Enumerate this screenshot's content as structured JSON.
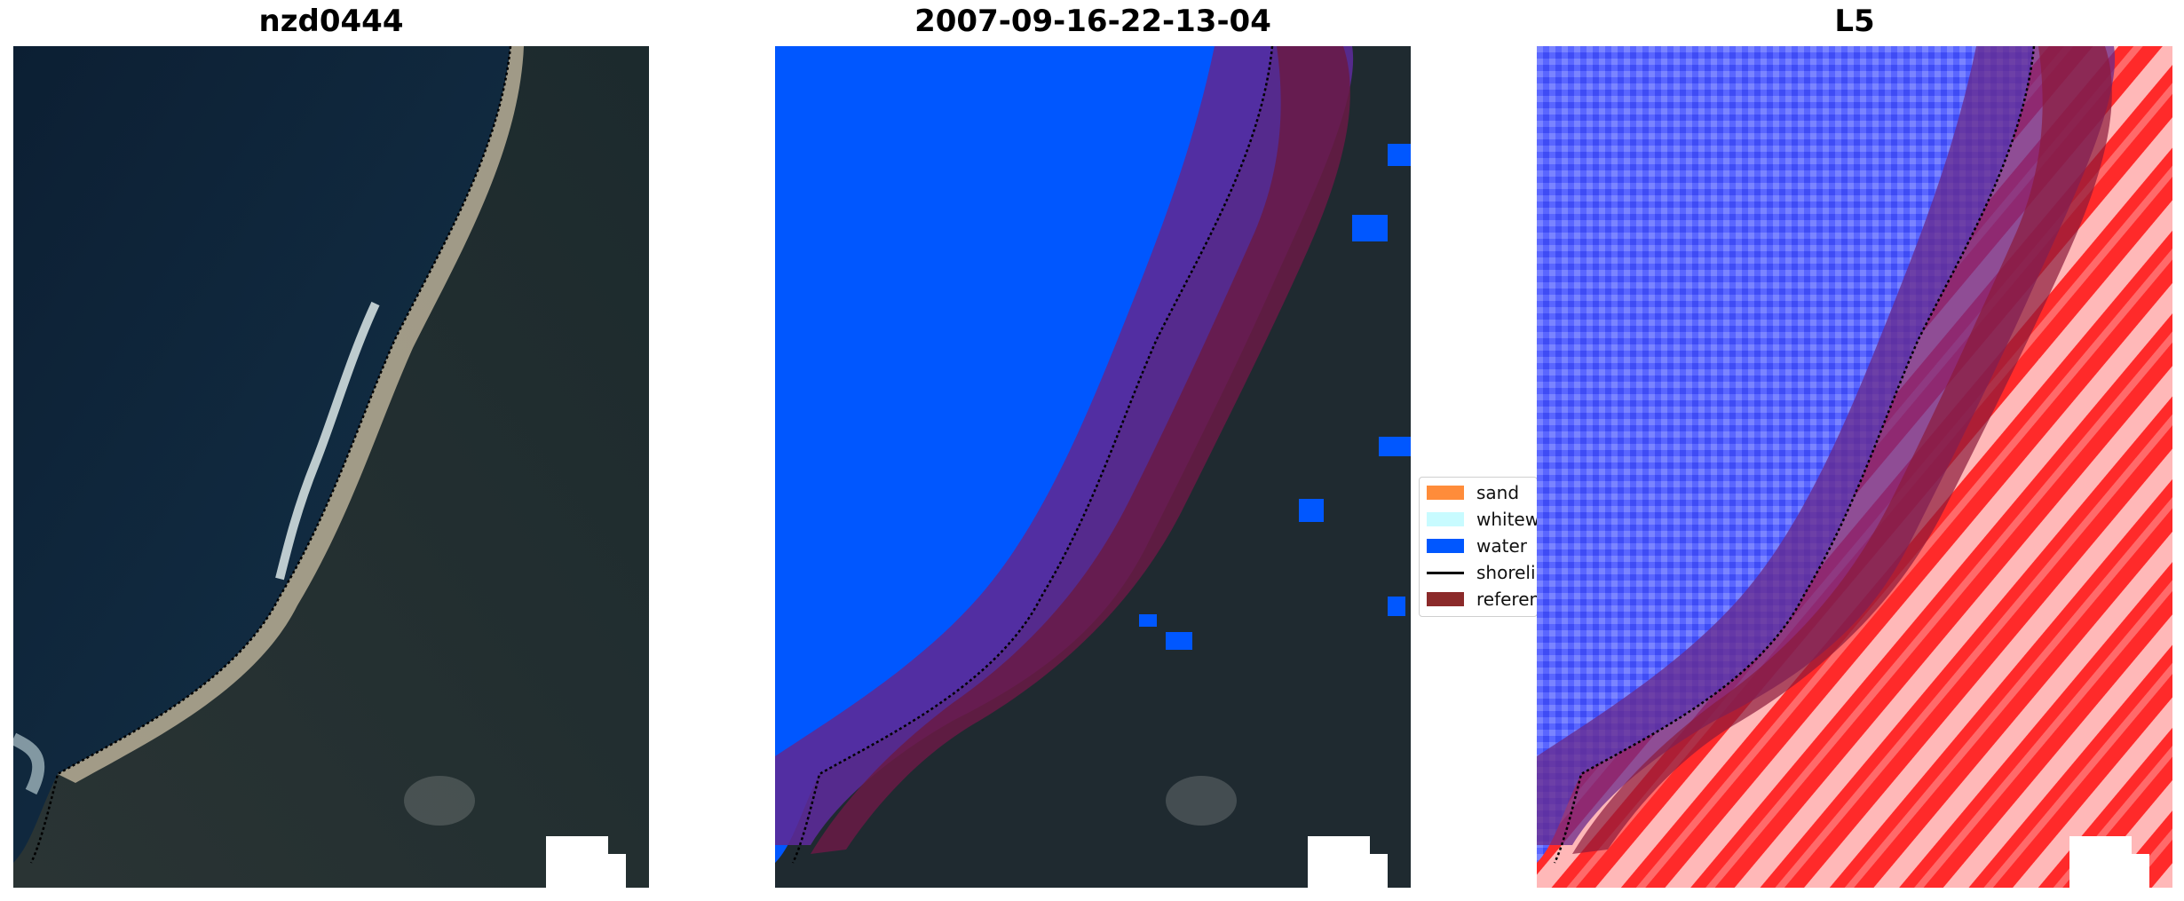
{
  "panels": [
    {
      "title": "nzd0444"
    },
    {
      "title": "2007-09-16-22-13-04"
    },
    {
      "title": "L5"
    }
  ],
  "legend": {
    "items": [
      {
        "label": "sand",
        "color": "#ff8c3a"
      },
      {
        "label": "whitewater",
        "color": "#c8fbff"
      },
      {
        "label": "water",
        "color": "#0057ff"
      },
      {
        "label": "shoreline",
        "color": "#000000"
      },
      {
        "label": "reference",
        "color": "#8b2a2a"
      }
    ]
  },
  "colors": {
    "sea": "#0f2538",
    "land": "#1f2a30",
    "beach": "#b8b09a",
    "water_class": "#0057ff",
    "buffer_overlay": "#7a1a5a",
    "ref_overlay": "#7a1a3a",
    "index_water": "#4a5bff",
    "index_land": "#ff2a2a"
  }
}
